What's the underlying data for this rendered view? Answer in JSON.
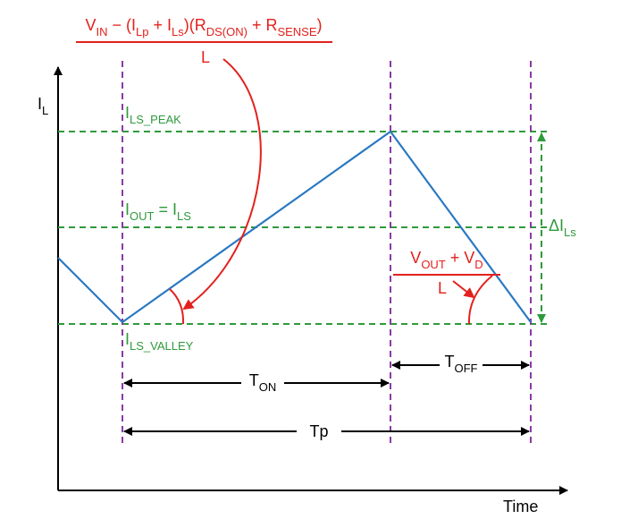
{
  "axes": {
    "y_label": {
      "parts": [
        "I",
        "L"
      ]
    },
    "x_label": {
      "parts": [
        "Time"
      ]
    }
  },
  "levels": {
    "peak": {
      "parts": [
        "I",
        "LS_PEAK"
      ]
    },
    "output": {
      "parts": [
        "I",
        "OUT",
        " = I",
        "LS"
      ]
    },
    "valley": {
      "parts": [
        "I",
        "LS_VALLEY"
      ]
    },
    "ripple": {
      "parts": [
        "ΔI",
        "Ls"
      ]
    }
  },
  "intervals": {
    "on": {
      "parts": [
        "T",
        "ON"
      ]
    },
    "off": {
      "parts": [
        "T",
        "OFF"
      ]
    },
    "period": {
      "parts": [
        "Tp"
      ]
    }
  },
  "formulas": {
    "rise": {
      "numerator": {
        "parts": [
          "V",
          "IN",
          " − (I",
          "Lp",
          " + I",
          "Ls",
          ")(R",
          "DS(ON)",
          " + R",
          "SENSE",
          ")"
        ]
      },
      "denominator": {
        "parts": [
          "L"
        ]
      }
    },
    "fall": {
      "numerator": {
        "parts": [
          "V",
          "OUT",
          " + V",
          "D"
        ]
      },
      "denominator": {
        "parts": [
          "L"
        ]
      }
    }
  }
}
